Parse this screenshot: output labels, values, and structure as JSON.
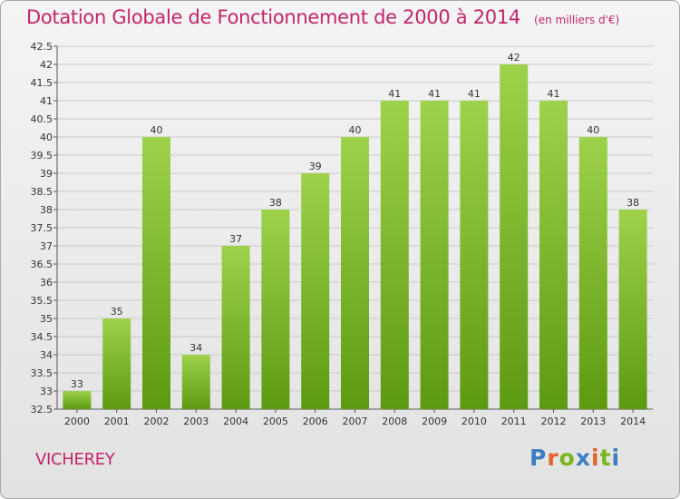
{
  "header": {
    "title": "Dotation Globale de Fonctionnement de 2000 à 2014",
    "unit": "(en milliers d'€)"
  },
  "commune": "VICHEREY",
  "logo": {
    "text": "Proxiti",
    "letter_colors": [
      "#3a7fc2",
      "#e2642a",
      "#7ab51d",
      "#3a7fc2",
      "#e2642a",
      "#7ab51d",
      "#3a7fc2"
    ]
  },
  "colors": {
    "bar_top": "#9ed24a",
    "bar_bottom": "#5c9a12",
    "accent": "#c4246a",
    "grid": "#c9c9c9"
  },
  "chart_data": {
    "type": "bar",
    "categories": [
      "2000",
      "2001",
      "2002",
      "2003",
      "2004",
      "2005",
      "2006",
      "2007",
      "2008",
      "2009",
      "2010",
      "2011",
      "2012",
      "2013",
      "2014"
    ],
    "values": [
      33,
      35,
      40,
      34,
      37,
      38,
      39,
      40,
      41,
      41,
      41,
      42,
      41,
      40,
      38
    ],
    "data_labels": [
      "33",
      "35",
      "40",
      "34",
      "37",
      "38",
      "39",
      "40",
      "41",
      "41",
      "41",
      "42",
      "41",
      "40",
      "38"
    ],
    "title": "Dotation Globale de Fonctionnement de 2000 à 2014",
    "xlabel": "",
    "ylabel": "",
    "ylim": [
      32.5,
      42.5
    ],
    "yticks": [
      "32.5",
      "33",
      "33.5",
      "34",
      "34.5",
      "35",
      "35.5",
      "36",
      "36.5",
      "37",
      "37.5",
      "38",
      "38.5",
      "39",
      "39.5",
      "40",
      "40.5",
      "41",
      "41.5",
      "42",
      "42.5"
    ],
    "grid": true,
    "legend": "none"
  }
}
